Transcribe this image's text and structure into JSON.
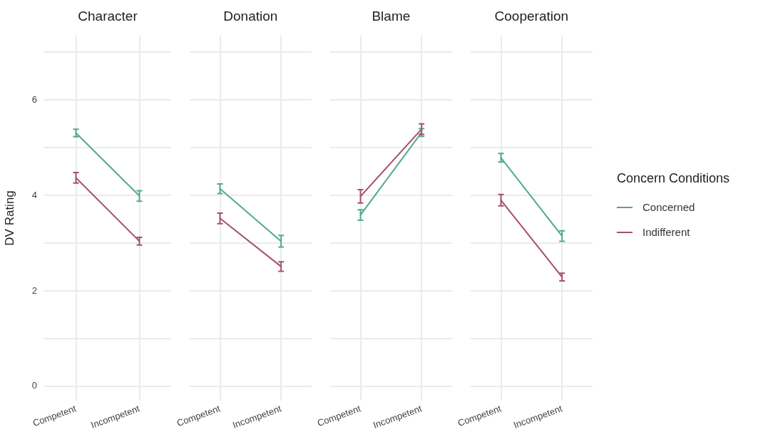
{
  "chart_data": [
    {
      "type": "line",
      "title": "Character",
      "ylabel": "DV Rating",
      "categories": [
        "Competent",
        "Incompetent"
      ],
      "ylim": [
        -0.3,
        7.35
      ],
      "yticks": [
        0,
        {
          "value": 1,
          "label": null
        },
        2,
        {
          "value": 3,
          "label": null
        },
        4,
        {
          "value": 5,
          "label": null
        },
        6,
        {
          "value": 7,
          "label": null
        }
      ],
      "grid": true,
      "legend": false,
      "series": [
        {
          "color": "#52a98a",
          "values": [
            5.31,
            3.99
          ],
          "errors": [
            0.08,
            0.11
          ]
        },
        {
          "color": "#a5506a",
          "values": [
            4.37,
            3.04
          ],
          "errors": [
            0.11,
            0.08
          ]
        }
      ]
    },
    {
      "type": "line",
      "title": "Donation",
      "categories": [
        "Competent",
        "Incompetent"
      ],
      "ylim": [
        -0.3,
        7.35
      ],
      "yticks": [
        0,
        {
          "value": 1,
          "label": null
        },
        2,
        {
          "value": 3,
          "label": null
        },
        4,
        {
          "value": 5,
          "label": null
        },
        6,
        {
          "value": 7,
          "label": null
        }
      ],
      "grid": true,
      "legend": false,
      "tick_labels": "x",
      "series": [
        {
          "color": "#52a98a",
          "values": [
            4.14,
            3.04
          ],
          "errors": [
            0.1,
            0.12
          ]
        },
        {
          "color": "#a5506a",
          "values": [
            3.52,
            2.51
          ],
          "errors": [
            0.11,
            0.1
          ]
        }
      ]
    },
    {
      "type": "line",
      "title": "Blame",
      "categories": [
        "Competent",
        "Incompetent"
      ],
      "ylim": [
        -0.3,
        7.35
      ],
      "yticks": [
        0,
        {
          "value": 1,
          "label": null
        },
        2,
        {
          "value": 3,
          "label": null
        },
        4,
        {
          "value": 5,
          "label": null
        },
        6,
        {
          "value": 7,
          "label": null
        }
      ],
      "grid": true,
      "legend": false,
      "tick_labels": "x",
      "series": [
        {
          "color": "#52a98a",
          "values": [
            3.59,
            5.32
          ],
          "errors": [
            0.11,
            0.08
          ]
        },
        {
          "color": "#a5506a",
          "values": [
            3.98,
            5.39
          ],
          "errors": [
            0.14,
            0.11
          ]
        }
      ]
    },
    {
      "type": "line",
      "title": "Cooperation",
      "legend_title": "Concern Conditions",
      "categories": [
        "Competent",
        "Incompetent"
      ],
      "ylim": [
        -0.3,
        7.35
      ],
      "yticks": [
        0,
        {
          "value": 1,
          "label": null
        },
        2,
        {
          "value": 3,
          "label": null
        },
        4,
        {
          "value": 5,
          "label": null
        },
        6,
        {
          "value": 7,
          "label": null
        }
      ],
      "grid": true,
      "legend": "right",
      "tick_labels": "x",
      "series": [
        {
          "name": "Concerned",
          "color": "#52a98a",
          "values": [
            4.79,
            3.15
          ],
          "errors": [
            0.09,
            0.11
          ]
        },
        {
          "name": "Indifferent",
          "color": "#a5506a",
          "values": [
            3.9,
            2.29
          ],
          "errors": [
            0.12,
            0.08
          ]
        }
      ]
    }
  ]
}
